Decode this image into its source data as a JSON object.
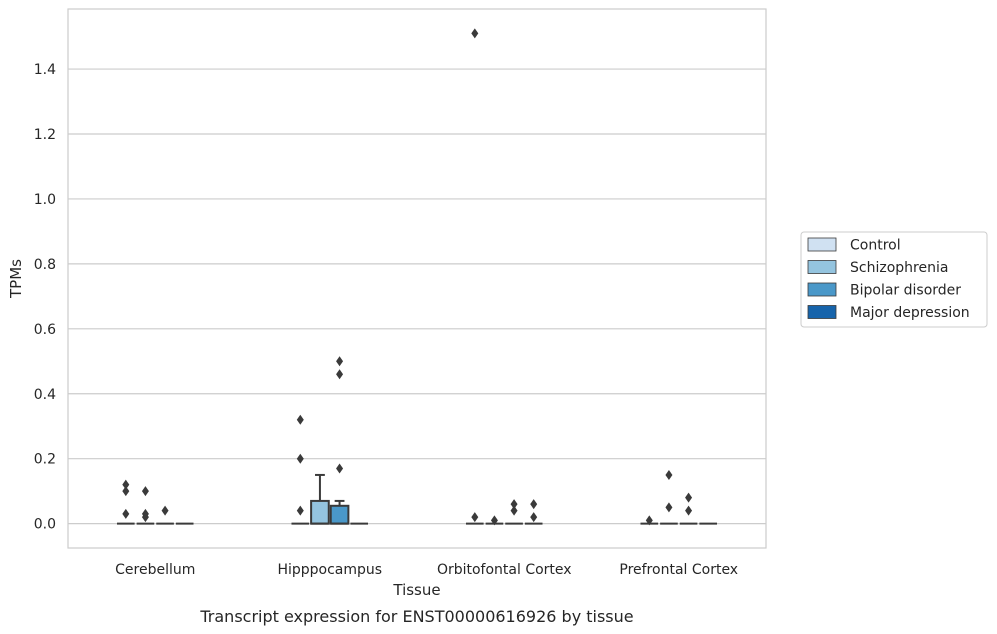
{
  "chart_data": {
    "type": "box",
    "title": "",
    "xlabel": "Tissue",
    "ylabel": "TPMs",
    "caption": "Transcript expression for ENST00000616926 by tissue",
    "ylim": [
      -0.075,
      1.585
    ],
    "yticks": [
      0.0,
      0.2,
      0.4,
      0.6,
      0.8,
      1.0,
      1.2,
      1.4
    ],
    "ytick_labels": [
      "0.0",
      "0.2",
      "0.4",
      "0.6",
      "0.8",
      "1.0",
      "1.2",
      "1.4"
    ],
    "grid": "horizontal",
    "legend_position": "right",
    "categories": [
      "Cerebellum",
      "Hipppocampus",
      "Orbitofontal Cortex",
      "Prefrontal Cortex"
    ],
    "series": [
      {
        "name": "Control",
        "color": "#d0e1f2",
        "boxes": [
          {
            "q1": 0,
            "median": 0,
            "q3": 0,
            "whisker_low": 0,
            "whisker_high": 0,
            "outliers": [
              0.03,
              0.1,
              0.12
            ]
          },
          {
            "q1": 0,
            "median": 0,
            "q3": 0,
            "whisker_low": 0,
            "whisker_high": 0,
            "outliers": [
              0.04,
              0.2,
              0.32
            ]
          },
          {
            "q1": 0,
            "median": 0,
            "q3": 0,
            "whisker_low": 0,
            "whisker_high": 0,
            "outliers": [
              0.02,
              1.51
            ]
          },
          {
            "q1": 0,
            "median": 0,
            "q3": 0,
            "whisker_low": 0,
            "whisker_high": 0,
            "outliers": [
              0.01
            ]
          }
        ]
      },
      {
        "name": "Schizophrenia",
        "color": "#94c4df",
        "boxes": [
          {
            "q1": 0,
            "median": 0,
            "q3": 0,
            "whisker_low": 0,
            "whisker_high": 0,
            "outliers": [
              0.02,
              0.03,
              0.1
            ]
          },
          {
            "q1": 0,
            "median": 0,
            "q3": 0.07,
            "whisker_low": 0,
            "whisker_high": 0.15,
            "outliers": []
          },
          {
            "q1": 0,
            "median": 0,
            "q3": 0,
            "whisker_low": 0,
            "whisker_high": 0,
            "outliers": [
              0.01
            ]
          },
          {
            "q1": 0,
            "median": 0,
            "q3": 0,
            "whisker_low": 0,
            "whisker_high": 0,
            "outliers": [
              0.05,
              0.15
            ]
          }
        ]
      },
      {
        "name": "Bipolar disorder",
        "color": "#4a98c9",
        "boxes": [
          {
            "q1": 0,
            "median": 0,
            "q3": 0,
            "whisker_low": 0,
            "whisker_high": 0,
            "outliers": [
              0.04
            ]
          },
          {
            "q1": 0,
            "median": 0,
            "q3": 0.055,
            "whisker_low": 0,
            "whisker_high": 0.07,
            "outliers": [
              0.17,
              0.46,
              0.5
            ]
          },
          {
            "q1": 0,
            "median": 0,
            "q3": 0,
            "whisker_low": 0,
            "whisker_high": 0,
            "outliers": [
              0.04,
              0.06
            ]
          },
          {
            "q1": 0,
            "median": 0,
            "q3": 0,
            "whisker_low": 0,
            "whisker_high": 0,
            "outliers": [
              0.04,
              0.08
            ]
          }
        ]
      },
      {
        "name": "Major depression",
        "color": "#1764ab",
        "boxes": [
          {
            "q1": 0,
            "median": 0,
            "q3": 0,
            "whisker_low": 0,
            "whisker_high": 0,
            "outliers": []
          },
          {
            "q1": 0,
            "median": 0,
            "q3": 0,
            "whisker_low": 0,
            "whisker_high": 0,
            "outliers": []
          },
          {
            "q1": 0,
            "median": 0,
            "q3": 0,
            "whisker_low": 0,
            "whisker_high": 0,
            "outliers": [
              0.02,
              0.06
            ]
          },
          {
            "q1": 0,
            "median": 0,
            "q3": 0,
            "whisker_low": 0,
            "whisker_high": 0,
            "outliers": []
          }
        ]
      }
    ]
  }
}
